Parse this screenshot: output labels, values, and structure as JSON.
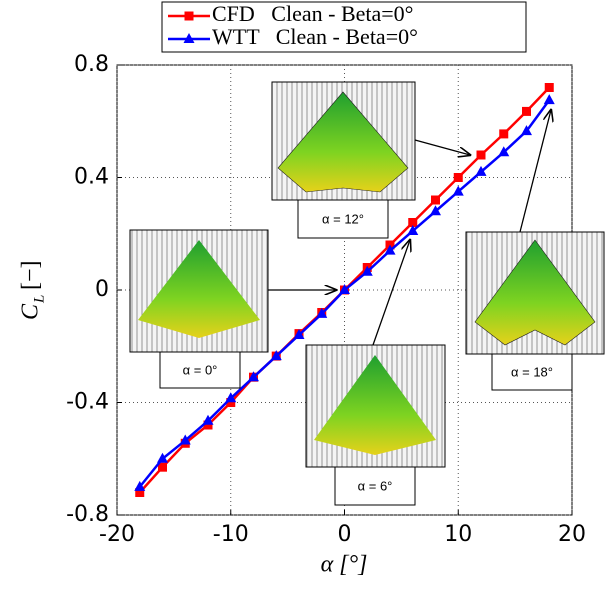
{
  "chart_data": {
    "type": "line",
    "x": [
      -18,
      -16,
      -14,
      -12,
      -10,
      -8,
      -6,
      -4,
      -2,
      0,
      2,
      4,
      6,
      8,
      10,
      12,
      14,
      16,
      18
    ],
    "series": [
      {
        "name": "CFD   Clean - Beta=0°",
        "color": "#ff0000",
        "marker": "square",
        "values": [
          -0.72,
          -0.63,
          -0.545,
          -0.48,
          -0.4,
          -0.31,
          -0.235,
          -0.155,
          -0.08,
          0,
          0.08,
          0.16,
          0.24,
          0.32,
          0.4,
          0.48,
          0.555,
          0.635,
          0.72
        ]
      },
      {
        "name": "WTT   Clean - Beta=0°",
        "color": "#0000ff",
        "marker": "triangle",
        "values": [
          -0.7,
          -0.6,
          -0.535,
          -0.465,
          -0.385,
          -0.31,
          -0.235,
          -0.16,
          -0.085,
          0,
          0.065,
          0.14,
          0.21,
          0.28,
          0.35,
          0.42,
          0.49,
          0.565,
          0.675
        ]
      }
    ],
    "xlim": [
      -20,
      20
    ],
    "xticks": [
      -20,
      -10,
      0,
      10,
      20
    ],
    "ylim": [
      -0.8,
      0.8
    ],
    "yticks": [
      -0.8,
      -0.4,
      0,
      0.4,
      0.8
    ],
    "grid": true,
    "xlabel": "α [°]",
    "ylabel": "C",
    "ylabel_subscript": "L",
    "ylabel_unit": "[−]",
    "annotations": [
      "α = 12°",
      "α = 0°",
      "α = 6°",
      "α = 18°"
    ]
  }
}
